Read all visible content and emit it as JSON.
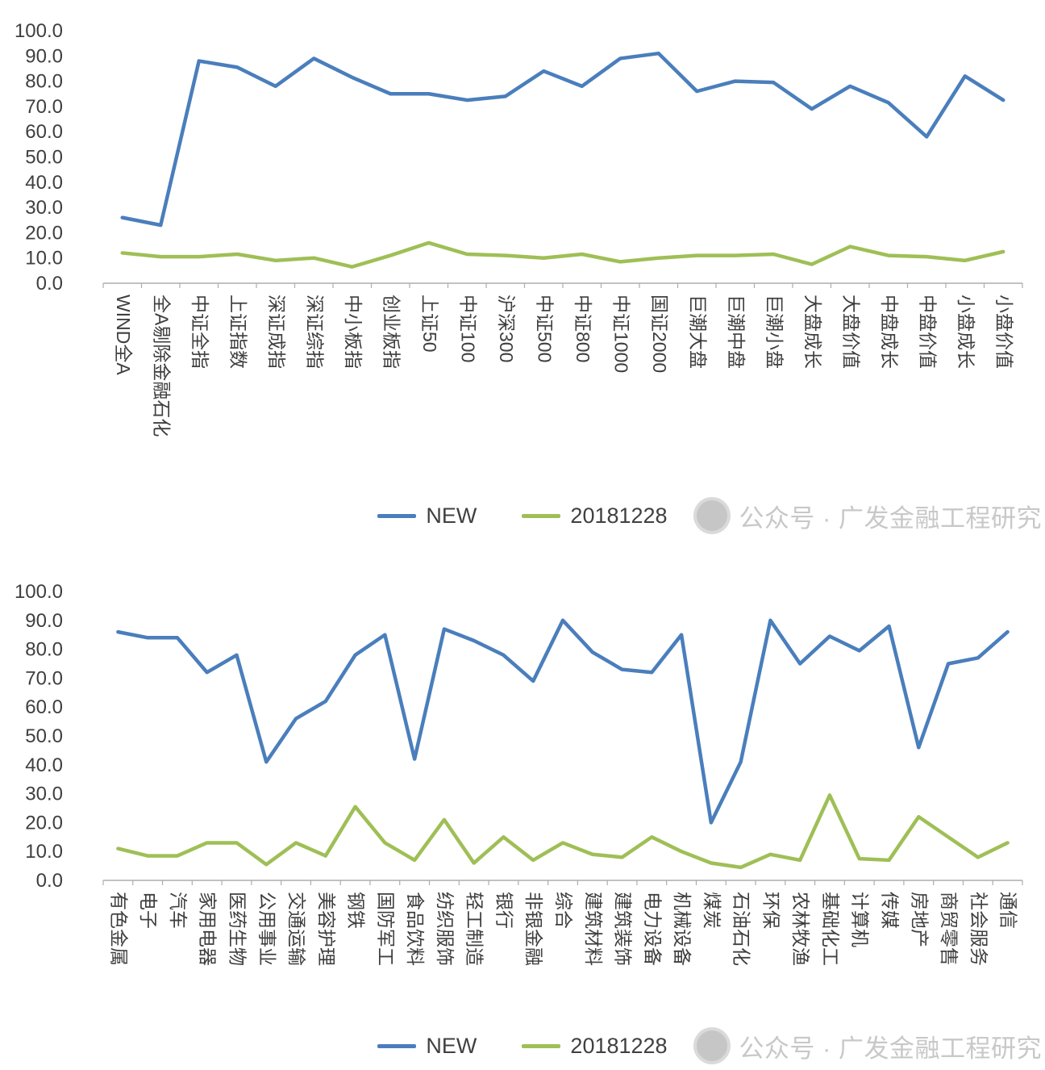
{
  "watermark": {
    "text": "公众号 · 广发金融工程研究"
  },
  "colors": {
    "new_line": "#4A7EBC",
    "old_line": "#9FBF56",
    "axis": "#ADADAD",
    "tick_label": "#3F3F3F",
    "legend_label": "#404040",
    "watermark_text": "#C8C8C8",
    "watermark_logo": "#B9B9B9"
  },
  "chart_data": [
    {
      "type": "line",
      "title": "",
      "xlabel": "",
      "ylabel": "",
      "ylim": [
        0,
        100
      ],
      "ytick_step": 10,
      "grid": false,
      "legend_position": "bottom",
      "categories": [
        "WIND全A",
        "全A剔除金融石化",
        "中证全指",
        "上证指数",
        "深证成指",
        "深证综指",
        "中小板指",
        "创业板指",
        "上证50",
        "中证100",
        "沪深300",
        "中证500",
        "中证800",
        "中证1000",
        "国证2000",
        "巨潮大盘",
        "巨潮中盘",
        "巨潮小盘",
        "大盘成长",
        "大盘价值",
        "中盘成长",
        "中盘价值",
        "小盘成长",
        "小盘价值"
      ],
      "series": [
        {
          "name": "NEW",
          "color": "#4A7EBC",
          "values": [
            26,
            23,
            88,
            85.5,
            78,
            89,
            81.5,
            75,
            75,
            72.5,
            74,
            84,
            78,
            89,
            91,
            76,
            80,
            79.5,
            69,
            78,
            71.5,
            58,
            82,
            72.5
          ]
        },
        {
          "name": "20181228",
          "color": "#9FBF56",
          "values": [
            12,
            10.5,
            10.5,
            11.5,
            9,
            10,
            6.5,
            11,
            16,
            11.5,
            11,
            10,
            11.5,
            8.5,
            10,
            11,
            11,
            11.5,
            7.5,
            14.5,
            11,
            10.5,
            9,
            12.5
          ]
        }
      ]
    },
    {
      "type": "line",
      "title": "",
      "xlabel": "",
      "ylabel": "",
      "ylim": [
        0,
        100
      ],
      "ytick_step": 10,
      "grid": false,
      "legend_position": "bottom",
      "categories": [
        "有色金属",
        "电子",
        "汽车",
        "家用电器",
        "医药生物",
        "公用事业",
        "交通运输",
        "美容护理",
        "钢铁",
        "国防军工",
        "食品饮料",
        "纺织服饰",
        "轻工制造",
        "银行",
        "非银金融",
        "综合",
        "建筑材料",
        "建筑装饰",
        "电力设备",
        "机械设备",
        "煤炭",
        "石油石化",
        "环保",
        "农林牧渔",
        "基础化工",
        "计算机",
        "传媒",
        "房地产",
        "商贸零售",
        "社会服务",
        "通信"
      ],
      "series": [
        {
          "name": "NEW",
          "color": "#4A7EBC",
          "values": [
            86,
            84,
            84,
            72,
            78,
            41,
            56,
            62,
            78,
            85,
            42,
            87,
            83,
            78,
            69,
            90,
            79,
            73,
            72,
            85,
            20,
            41,
            90,
            75,
            84.5,
            79.5,
            88,
            46,
            75,
            77,
            86
          ]
        },
        {
          "name": "20181228",
          "color": "#9FBF56",
          "values": [
            11,
            8.5,
            8.5,
            13,
            13,
            5.5,
            13,
            8.5,
            25.5,
            13,
            7,
            21,
            6,
            15,
            7,
            13,
            9,
            8,
            15,
            10,
            6,
            4.5,
            9,
            7,
            29.5,
            7.5,
            7,
            22,
            15,
            8,
            13
          ]
        }
      ]
    }
  ]
}
